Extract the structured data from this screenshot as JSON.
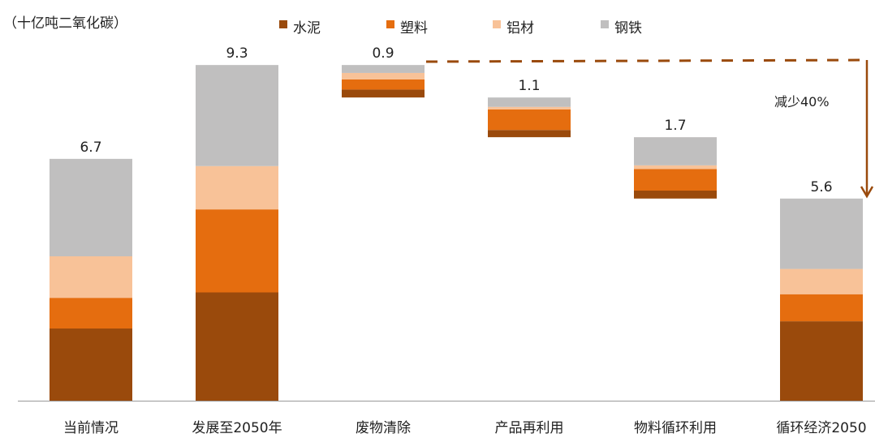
{
  "chart_data": {
    "type": "bar",
    "subtype": "waterfall-stacked",
    "unit_label": "（十亿吨二氧化碳）",
    "categories": [
      "当前情况",
      "发展至2050年",
      "废物清除",
      "产品再利用",
      "物料循环利用",
      "循环经济2050"
    ],
    "bar_kind": [
      "total",
      "total",
      "decrease",
      "decrease",
      "decrease",
      "total"
    ],
    "totals": [
      "6.7",
      "9.3",
      "0.9",
      "1.1",
      "1.7",
      "5.6"
    ],
    "total_values": [
      6.7,
      9.3,
      0.9,
      1.1,
      1.7,
      5.6
    ],
    "series": [
      {
        "name": "水泥",
        "color": "#9a4a0c",
        "values": [
          2.0,
          3.0,
          0.22,
          0.2,
          0.22,
          2.2
        ]
      },
      {
        "name": "塑料",
        "color": "#e56d0f",
        "values": [
          0.85,
          2.3,
          0.28,
          0.57,
          0.6,
          0.75
        ]
      },
      {
        "name": "铝材",
        "color": "#f8c298",
        "values": [
          1.15,
          1.2,
          0.18,
          0.07,
          0.1,
          0.7
        ]
      },
      {
        "name": "钢铁",
        "color": "#c0bfbf",
        "values": [
          2.7,
          2.8,
          0.22,
          0.26,
          0.78,
          1.95
        ]
      }
    ],
    "annotation": "减少40%",
    "annotation_color": "#9a4a0c",
    "ylim": [
      0,
      9.5
    ],
    "legend_position": "top",
    "grid": false
  }
}
